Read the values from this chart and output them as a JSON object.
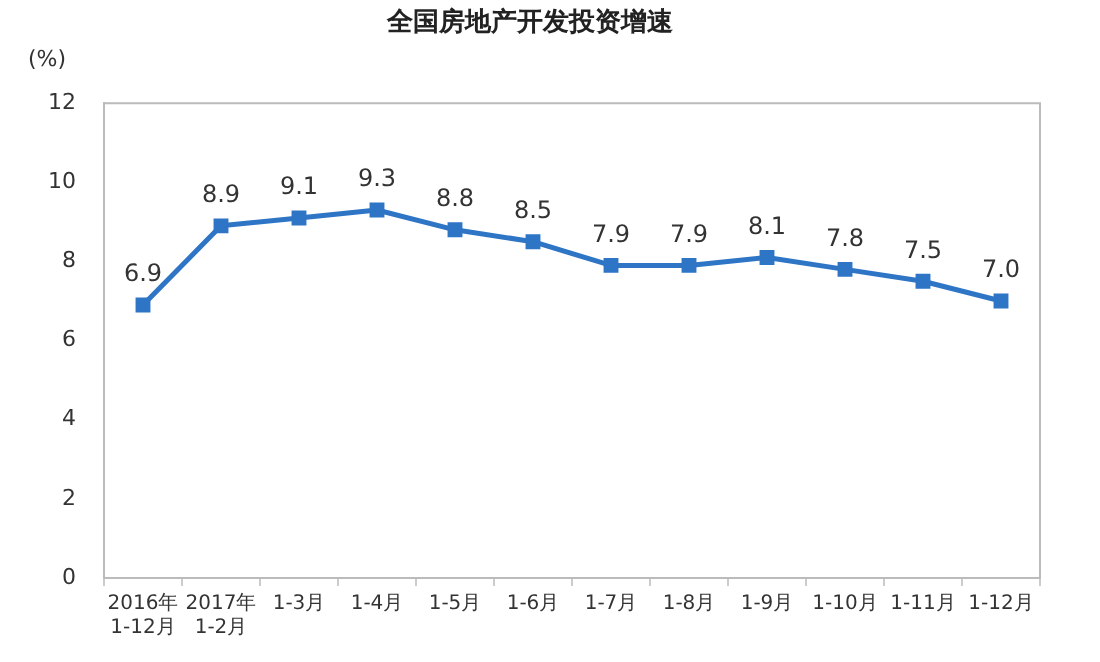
{
  "chart_data": {
    "type": "line",
    "title": "全国房地产开发投资增速",
    "ylabel": "(%)",
    "categories": [
      "2016年\n1-12月",
      "2017年\n1-2月",
      "1-3月",
      "1-4月",
      "1-5月",
      "1-6月",
      "1-7月",
      "1-8月",
      "1-9月",
      "1-10月",
      "1-11月",
      "1-12月"
    ],
    "values": [
      6.9,
      8.9,
      9.1,
      9.3,
      8.8,
      8.5,
      7.9,
      7.9,
      8.1,
      7.8,
      7.5,
      7.0
    ],
    "value_labels": [
      "6.9",
      "8.9",
      "9.1",
      "9.3",
      "8.8",
      "8.5",
      "7.9",
      "7.9",
      "8.1",
      "7.8",
      "7.5",
      "7.0"
    ],
    "color": "#2e75c6",
    "marker": "square",
    "line_style": "solid",
    "grid": false,
    "legend": false,
    "ylim": [
      0,
      12
    ],
    "yticks": [
      0,
      2,
      4,
      6,
      8,
      10,
      12
    ]
  }
}
